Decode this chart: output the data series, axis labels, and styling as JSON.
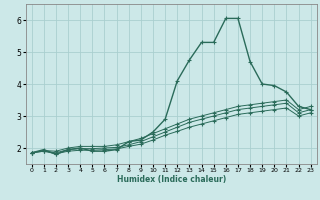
{
  "xlabel": "Humidex (Indice chaleur)",
  "ylabel": "",
  "background_color": "#cce8e8",
  "grid_color": "#aacfcf",
  "line_color": "#2a6b5a",
  "x_range": [
    -0.5,
    23.5
  ],
  "y_range": [
    1.5,
    6.5
  ],
  "yticks": [
    2,
    3,
    4,
    5,
    6
  ],
  "xticks": [
    0,
    1,
    2,
    3,
    4,
    5,
    6,
    7,
    8,
    9,
    10,
    11,
    12,
    13,
    14,
    15,
    16,
    17,
    18,
    19,
    20,
    21,
    22,
    23
  ],
  "series": [
    {
      "x": [
        0,
        1,
        2,
        3,
        4,
        5,
        6,
        7,
        8,
        9,
        10,
        11,
        12,
        13,
        14,
        15,
        16,
        17,
        18,
        19,
        20,
        21,
        22,
        23
      ],
      "y": [
        1.85,
        1.95,
        1.8,
        1.95,
        2.0,
        1.9,
        1.9,
        1.95,
        2.2,
        2.25,
        2.5,
        2.9,
        4.1,
        4.75,
        5.3,
        5.3,
        6.05,
        6.05,
        4.7,
        4.0,
        3.95,
        3.75,
        3.3,
        3.2
      ]
    },
    {
      "x": [
        0,
        1,
        2,
        3,
        4,
        5,
        6,
        7,
        8,
        9,
        10,
        11,
        12,
        13,
        14,
        15,
        16,
        17,
        18,
        19,
        20,
        21,
        22,
        23
      ],
      "y": [
        1.85,
        1.92,
        1.9,
        2.0,
        2.05,
        2.05,
        2.05,
        2.1,
        2.2,
        2.3,
        2.45,
        2.6,
        2.75,
        2.9,
        3.0,
        3.1,
        3.2,
        3.3,
        3.35,
        3.4,
        3.45,
        3.5,
        3.2,
        3.3
      ]
    },
    {
      "x": [
        0,
        1,
        2,
        3,
        4,
        5,
        6,
        7,
        8,
        9,
        10,
        11,
        12,
        13,
        14,
        15,
        16,
        17,
        18,
        19,
        20,
        21,
        22,
        23
      ],
      "y": [
        1.85,
        1.9,
        1.85,
        1.95,
        1.98,
        1.98,
        2.0,
        2.02,
        2.1,
        2.2,
        2.35,
        2.5,
        2.65,
        2.8,
        2.9,
        3.0,
        3.1,
        3.2,
        3.25,
        3.3,
        3.35,
        3.4,
        3.1,
        3.2
      ]
    },
    {
      "x": [
        0,
        1,
        2,
        3,
        4,
        5,
        6,
        7,
        8,
        9,
        10,
        11,
        12,
        13,
        14,
        15,
        16,
        17,
        18,
        19,
        20,
        21,
        22,
        23
      ],
      "y": [
        1.85,
        1.9,
        1.82,
        1.9,
        1.93,
        1.93,
        1.95,
        1.97,
        2.05,
        2.12,
        2.25,
        2.4,
        2.52,
        2.65,
        2.75,
        2.85,
        2.95,
        3.05,
        3.1,
        3.15,
        3.2,
        3.25,
        3.0,
        3.1
      ]
    }
  ]
}
